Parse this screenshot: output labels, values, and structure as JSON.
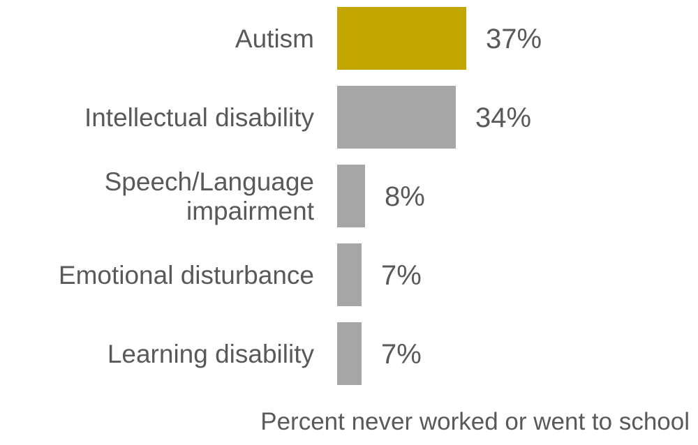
{
  "chart_data": {
    "type": "bar",
    "orientation": "horizontal",
    "categories": [
      [
        "Autism"
      ],
      [
        "Intellectual disability"
      ],
      [
        "Speech/Language",
        "impairment"
      ],
      [
        "Emotional disturbance"
      ],
      [
        "Learning disability"
      ]
    ],
    "values": [
      37,
      34,
      8,
      7,
      7
    ],
    "value_labels": [
      "37%",
      "34%",
      "8%",
      "7%",
      "7%"
    ],
    "bar_colors": [
      "#c3a600",
      "#a6a6a6",
      "#a6a6a6",
      "#a6a6a6",
      "#a6a6a6"
    ],
    "xlabel": "Percent never worked or went to school",
    "ylabel": "",
    "title": "",
    "xlim": [
      0,
      37
    ],
    "grid": false,
    "legend": "none"
  }
}
